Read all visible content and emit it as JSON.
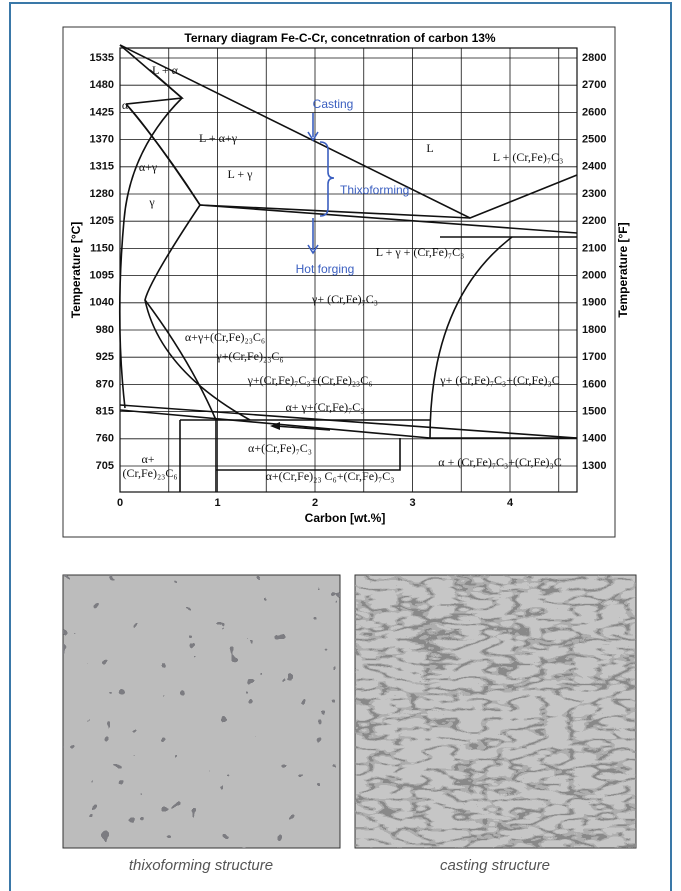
{
  "diagram": {
    "title": "Ternary diagram Fe-C-Cr, concetnration of carbon 13%",
    "y_axis_left": {
      "label": "Temperature [°C]",
      "ticks": [
        1535,
        1480,
        1425,
        1370,
        1315,
        1280,
        1205,
        1150,
        1095,
        1040,
        980,
        925,
        870,
        815,
        760,
        705
      ]
    },
    "y_axis_right": {
      "label": "Temperature [°F]",
      "ticks": [
        2800,
        2700,
        2600,
        2500,
        2400,
        2300,
        2200,
        2100,
        2000,
        1900,
        1800,
        1700,
        1600,
        1500,
        1400,
        1300
      ]
    },
    "x_axis": {
      "label": "Carbon  [wt.%]",
      "ticks": [
        0,
        1,
        2,
        3,
        4
      ]
    },
    "regions": [
      "L + α",
      "α",
      "L + α+γ",
      "α+γ",
      "L + γ",
      "γ",
      "L",
      "L + (Cr,Fe)₇C₃",
      "L + γ + (Cr,Fe)₇C₃",
      "γ+ (Cr,Fe)₇C₃",
      "α+γ+(Cr,Fe)₂₃C₆",
      "γ+(Cr,Fe)₂₃C₆",
      "γ+(Cr,Fe)₇C₃+(Cr,Fe)₂₃C₆",
      "γ+ (Cr,Fe)₇C₃+(Cr,Fe)₃C",
      "α+ γ+(Cr,Fe)₇C₃",
      "α+(Cr,Fe)₇C₃",
      "α+",
      "(Cr,Fe)₂₃C₆",
      "α+(Cr,Fe)₂₃ C₆+(Cr,Fe)₇C₃",
      "α + (Cr,Fe)₇C₃+(Cr,Fe)₃C"
    ],
    "process_labels": [
      "Casting",
      "Thixoforming",
      "Hot forging"
    ]
  },
  "images": [
    {
      "caption": "thixoforming structure"
    },
    {
      "caption": "casting structure"
    }
  ]
}
